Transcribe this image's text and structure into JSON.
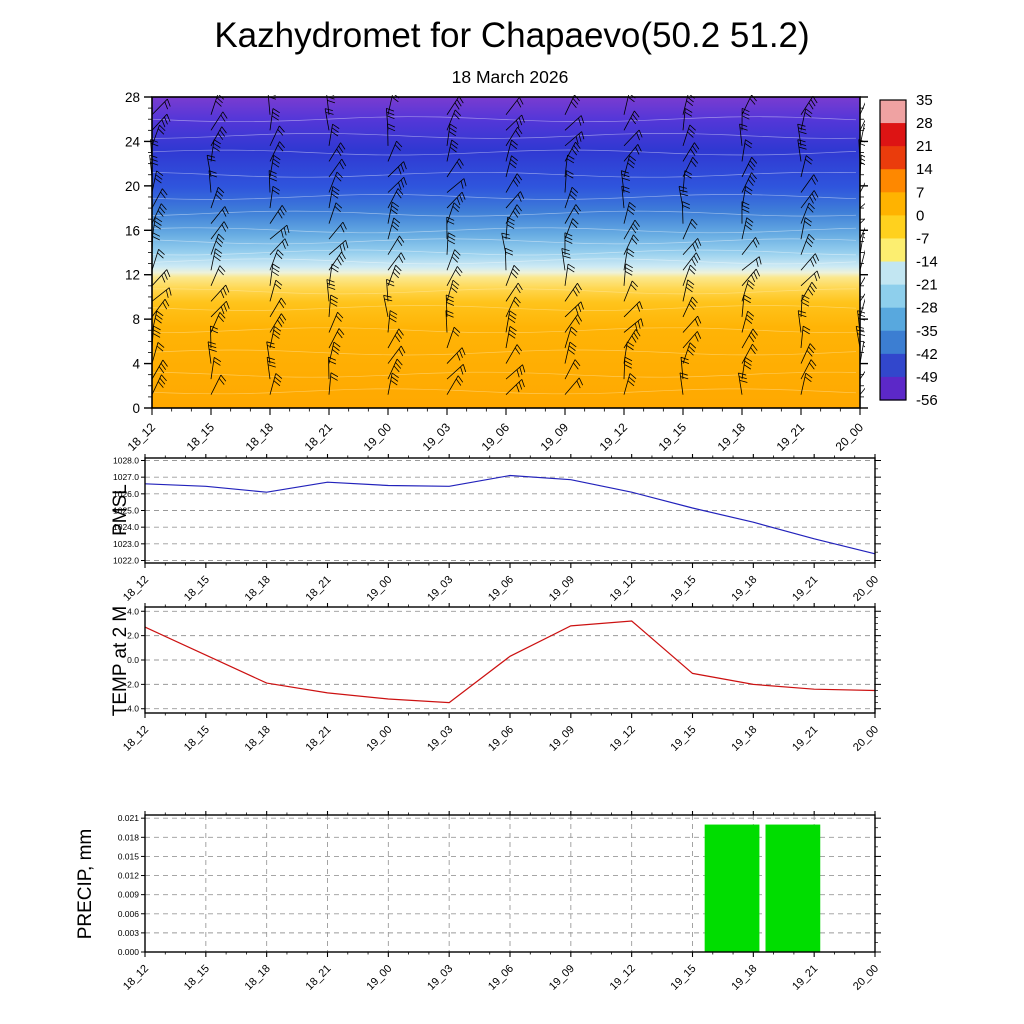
{
  "title": "Kazhydromet for Chapaevo(50.2 51.2)",
  "subtitle": "18 March 2026",
  "time_labels": [
    "18_12",
    "18_15",
    "18_18",
    "18_21",
    "19_00",
    "19_03",
    "19_06",
    "19_09",
    "19_12",
    "19_15",
    "19_18",
    "19_21",
    "20_00"
  ],
  "chart_data": [
    {
      "name": "upper-air-temperature-cross-section",
      "type": "heatmap",
      "title": "18 March 2026",
      "x_tick_labels": [
        "18_12",
        "18_15",
        "18_18",
        "18_21",
        "19_00",
        "19_03",
        "19_06",
        "19_09",
        "19_12",
        "19_15",
        "19_18",
        "19_21",
        "20_00"
      ],
      "y_tick_labels": [
        "0",
        "4",
        "8",
        "12",
        "16",
        "20",
        "24",
        "28"
      ],
      "y_range": [
        0,
        28
      ],
      "wind_barbs": "wind barbs plotted at every time step and level",
      "colorbar_tick_labels": [
        "35",
        "28",
        "21",
        "14",
        "7",
        "0",
        "-7",
        "-14",
        "-21",
        "-28",
        "-35",
        "-42",
        "-49",
        "-56"
      ],
      "colorbar_segment_colors": [
        "#efa2a2",
        "#dd1414",
        "#ea3c0c",
        "#fe8800",
        "#ffb300",
        "#ffd11e",
        "#fcee70",
        "#c2e6f2",
        "#8ecfec",
        "#58a8de",
        "#3c7ed2",
        "#3247cc",
        "#5c28c8"
      ],
      "gradient_stops": [
        {
          "pos": 0.0,
          "color": "#7a3cd0"
        },
        {
          "pos": 0.07,
          "color": "#5537d8"
        },
        {
          "pos": 0.17,
          "color": "#3038d2"
        },
        {
          "pos": 0.29,
          "color": "#2f55dd"
        },
        {
          "pos": 0.37,
          "color": "#3f7fd8"
        },
        {
          "pos": 0.44,
          "color": "#66abe2"
        },
        {
          "pos": 0.5,
          "color": "#97cfee"
        },
        {
          "pos": 0.545,
          "color": "#cdeaf4"
        },
        {
          "pos": 0.565,
          "color": "#eef2da"
        },
        {
          "pos": 0.58,
          "color": "#fbe88e"
        },
        {
          "pos": 0.62,
          "color": "#ffd54a"
        },
        {
          "pos": 0.66,
          "color": "#ffc41c"
        },
        {
          "pos": 0.74,
          "color": "#ffb406"
        },
        {
          "pos": 1.0,
          "color": "#ffa800"
        }
      ]
    },
    {
      "name": "pmsl",
      "type": "line",
      "ylabel": "PMSL",
      "x": [
        "18_12",
        "18_15",
        "18_18",
        "18_21",
        "19_00",
        "19_03",
        "19_06",
        "19_09",
        "19_12",
        "19_15",
        "19_18",
        "19_21",
        "20_00"
      ],
      "values": [
        1026.6,
        1026.45,
        1026.1,
        1026.7,
        1026.5,
        1026.45,
        1027.1,
        1026.85,
        1026.1,
        1025.15,
        1024.3,
        1023.3,
        1022.4
      ],
      "ylim": [
        1021.85,
        1028.15
      ],
      "y_ticks": [
        1028,
        1027,
        1026,
        1025,
        1024,
        1023,
        1022
      ],
      "y_tick_labels": [
        "1028.0",
        "1027.0",
        "1026.0",
        "1025.0",
        "1024.0",
        "1023.0",
        "1022.0"
      ],
      "line_color": "#2222bb"
    },
    {
      "name": "temp-2m",
      "type": "line",
      "ylabel": "TEMP at 2 M",
      "x": [
        "18_12",
        "18_15",
        "18_18",
        "18_21",
        "19_00",
        "19_03",
        "19_06",
        "19_09",
        "19_12",
        "19_15",
        "19_18",
        "19_21",
        "20_00"
      ],
      "values": [
        2.7,
        0.4,
        -1.9,
        -2.7,
        -3.2,
        -3.5,
        0.3,
        2.8,
        3.2,
        -1.1,
        -2.0,
        -2.4,
        -2.5
      ],
      "ylim": [
        -4.35,
        4.35
      ],
      "y_ticks": [
        4,
        2,
        0,
        -2,
        -4
      ],
      "y_tick_labels": [
        "4.0",
        "2.0",
        "0.0",
        "-2.0",
        "-4.0"
      ],
      "line_color": "#cc1111"
    },
    {
      "name": "precipitation",
      "type": "bar",
      "ylabel": "PRECIP, mm",
      "x_intervals": [
        [
          "18_12",
          "18_15"
        ],
        [
          "18_15",
          "18_18"
        ],
        [
          "18_18",
          "18_21"
        ],
        [
          "18_21",
          "19_00"
        ],
        [
          "19_00",
          "19_03"
        ],
        [
          "19_03",
          "19_06"
        ],
        [
          "19_06",
          "19_09"
        ],
        [
          "19_09",
          "19_12"
        ],
        [
          "19_12",
          "19_15"
        ],
        [
          "19_15",
          "19_18"
        ],
        [
          "19_18",
          "19_21"
        ],
        [
          "19_21",
          "20_00"
        ]
      ],
      "interval_values": [
        0,
        0,
        0,
        0,
        0,
        0,
        0,
        0,
        0,
        0.02,
        0.02,
        0
      ],
      "ylim": [
        0,
        0.0215
      ],
      "y_ticks": [
        0.021,
        0.018,
        0.015,
        0.012,
        0.009,
        0.006,
        0.003,
        0
      ],
      "y_tick_labels": [
        "0.021",
        "0.018",
        "0.015",
        "0.012",
        "0.009",
        "0.006",
        "0.003",
        "0.000"
      ],
      "bar_color": "#00dd00"
    }
  ]
}
